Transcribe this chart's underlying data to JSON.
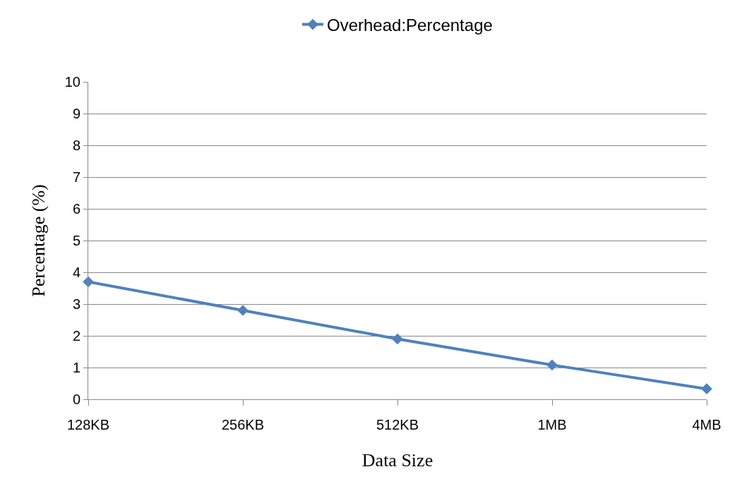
{
  "chart_data": {
    "type": "line",
    "xlabel": "Data Size",
    "ylabel": "Percentage (%)",
    "categories": [
      "128KB",
      "256KB",
      "512KB",
      "1MB",
      "4MB"
    ],
    "series": [
      {
        "name": "Overhead:Percentage",
        "color": "#4f81bd",
        "values": [
          3.7,
          2.8,
          1.9,
          1.08,
          0.33
        ]
      }
    ],
    "ylim": [
      0,
      10
    ],
    "yticks": [
      0,
      1,
      2,
      3,
      4,
      5,
      6,
      7,
      8,
      9,
      10
    ],
    "grid": "y",
    "legend": "top",
    "marker": "diamond",
    "line_style": "solid"
  }
}
